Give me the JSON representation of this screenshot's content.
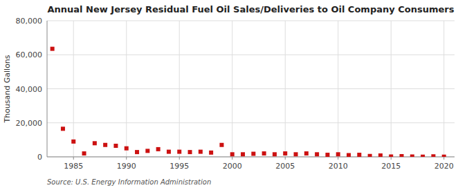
{
  "chart_data": {
    "type": "scatter",
    "title": "Annual New Jersey Residual Fuel Oil Sales/Deliveries to Oil Company Consumers",
    "ylabel": "Thousand Gallons",
    "source": "Source: U.S. Energy Information Administration",
    "x": [
      1983,
      1984,
      1985,
      1986,
      1987,
      1988,
      1989,
      1990,
      1991,
      1992,
      1993,
      1994,
      1995,
      1996,
      1997,
      1998,
      1999,
      2000,
      2001,
      2002,
      2003,
      2004,
      2005,
      2006,
      2007,
      2008,
      2009,
      2010,
      2011,
      2012,
      2013,
      2014,
      2015,
      2016,
      2017,
      2018,
      2019,
      2020
    ],
    "values": [
      63500,
      16500,
      9000,
      2000,
      8000,
      7000,
      6500,
      5000,
      2800,
      3500,
      4500,
      3000,
      3000,
      2800,
      3000,
      2500,
      7000,
      1500,
      1500,
      1800,
      2000,
      1500,
      2000,
      1500,
      2000,
      1500,
      1200,
      1500,
      1000,
      1200,
      500,
      800,
      200,
      400,
      200,
      100,
      300,
      100
    ],
    "color": "#cc1111",
    "marker": "square",
    "xlim": [
      1982.5,
      2021
    ],
    "ylim": [
      0,
      80000
    ],
    "xticks": [
      1985,
      1990,
      1995,
      2000,
      2005,
      2010,
      2015,
      2020
    ],
    "yticks": [
      0,
      {
        "value": 20000,
        "label": "20,000"
      },
      {
        "value": 40000,
        "label": "40,000"
      },
      {
        "value": 60000,
        "label": "60,000"
      },
      {
        "value": 80000,
        "label": "80,000"
      }
    ],
    "grid": true
  }
}
